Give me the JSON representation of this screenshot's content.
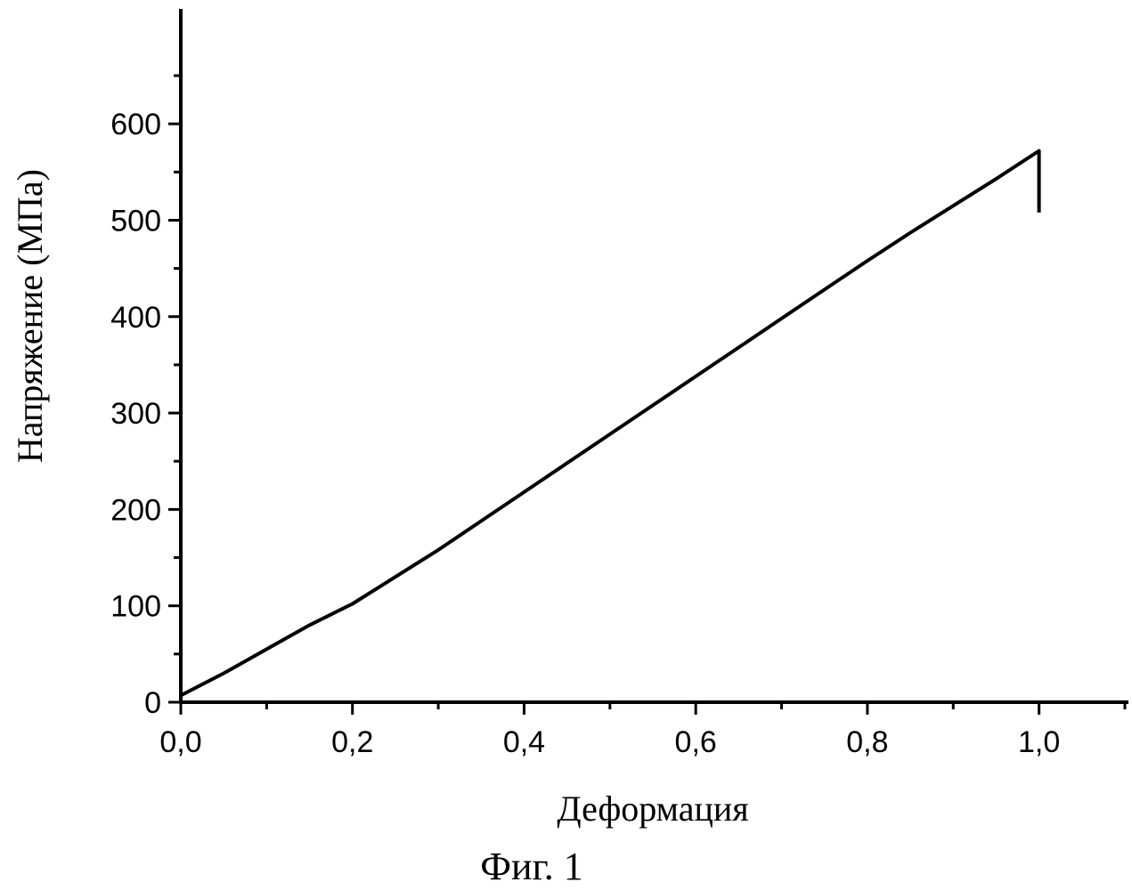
{
  "chart_data": {
    "type": "line",
    "title": "",
    "xlabel": "Деформация",
    "ylabel": "Напряжение (МПа)",
    "xlim": [
      0.0,
      1.1
    ],
    "ylim": [
      0,
      650
    ],
    "x_ticks": [
      0.0,
      0.2,
      0.4,
      0.6,
      0.8,
      1.0
    ],
    "x_tick_labels": [
      "0,0",
      "0,2",
      "0,4",
      "0,6",
      "0,8",
      "1,0"
    ],
    "y_ticks": [
      0,
      100,
      200,
      300,
      400,
      500,
      600
    ],
    "y_tick_labels": [
      "0",
      "100",
      "200",
      "300",
      "400",
      "500",
      "600"
    ],
    "grid": false,
    "legend": "none",
    "series": [
      {
        "x": [
          0.0,
          0.05,
          0.1,
          0.15,
          0.2,
          0.25,
          0.3,
          0.35,
          0.4,
          0.45,
          0.5,
          0.55,
          0.6,
          0.65,
          0.7,
          0.75,
          0.8,
          0.85,
          0.9,
          0.95,
          1.0,
          1.0
        ],
        "y": [
          7,
          30,
          55,
          80,
          102,
          130,
          158,
          188,
          218,
          248,
          278,
          308,
          338,
          368,
          398,
          428,
          458,
          487,
          515,
          543,
          572,
          508
        ],
        "color": "#000000"
      }
    ]
  },
  "caption": "Фиг. 1"
}
